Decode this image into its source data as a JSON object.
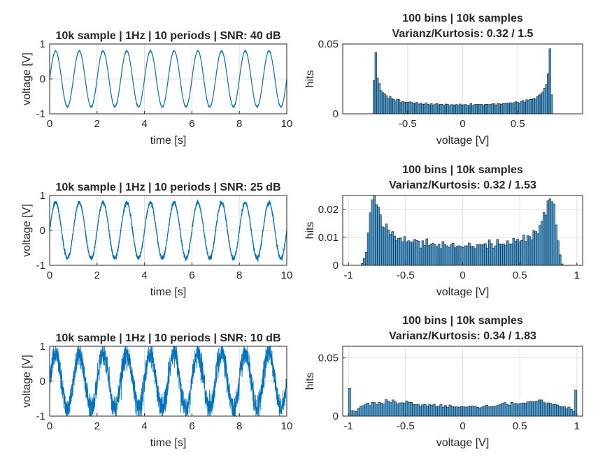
{
  "colors": {
    "line": "#0072BD",
    "bar_fill": "#4D9ED3",
    "bar_edge": "#1A1A1A",
    "axis": "#262626",
    "grid": "#DFDFDF"
  },
  "chart_data": [
    {
      "type": "line",
      "title": "10k sample | 1Hz | 10 periods | SNR: 40 dB",
      "xlabel": "time [s]",
      "ylabel": "voltage [V]",
      "xlim": [
        0,
        10
      ],
      "ylim": [
        -1,
        1
      ],
      "xticks": [
        0,
        2,
        4,
        6,
        8,
        10
      ],
      "yticks": [
        -1,
        0,
        1
      ],
      "grid": true,
      "samples": 10000,
      "frequency_hz": 1,
      "amplitude": 0.8,
      "snr_db": 40
    },
    {
      "type": "bar",
      "title": [
        "100 bins | 10k samples",
        "Varianz/Kurtosis: 0.32 / 1.5"
      ],
      "xlabel": "voltage [V]",
      "ylabel": "hits",
      "xlim": [
        -1.09,
        1.09
      ],
      "ylim": [
        0,
        0.05
      ],
      "xticks": [
        -0.5,
        0,
        0.5
      ],
      "yticks": [
        0,
        0.05
      ],
      "grid": true,
      "bins": 100,
      "samples": 10000,
      "variance": 0.32,
      "kurtosis": 1.5
    },
    {
      "type": "line",
      "title": "10k sample | 1Hz | 10 periods | SNR: 25 dB",
      "xlabel": "time [s]",
      "ylabel": "voltage [V]",
      "xlim": [
        0,
        10
      ],
      "ylim": [
        -1,
        1
      ],
      "xticks": [
        0,
        2,
        4,
        6,
        8,
        10
      ],
      "yticks": [
        -1,
        0,
        1
      ],
      "grid": true,
      "samples": 10000,
      "frequency_hz": 1,
      "amplitude": 0.8,
      "snr_db": 25
    },
    {
      "type": "bar",
      "title": [
        "100 bins | 10k samples",
        "Varianz/Kurtosis: 0.32 / 1.53"
      ],
      "xlabel": "voltage [V]",
      "ylabel": "hits",
      "xlim": [
        -1.05,
        1.05
      ],
      "ylim": [
        0,
        0.025
      ],
      "xticks": [
        -1,
        -0.5,
        0,
        0.5,
        1
      ],
      "yticks": [
        0,
        0.01,
        0.02
      ],
      "grid": true,
      "bins": 100,
      "samples": 10000,
      "variance": 0.32,
      "kurtosis": 1.53
    },
    {
      "type": "line",
      "title": "10k sample | 1Hz | 10 periods | SNR: 10 dB",
      "xlabel": "time [s]",
      "ylabel": "voltage [V]",
      "xlim": [
        0,
        10
      ],
      "ylim": [
        -1,
        1
      ],
      "xticks": [
        0,
        2,
        4,
        6,
        8,
        10
      ],
      "yticks": [
        -1,
        0,
        1
      ],
      "grid": true,
      "samples": 10000,
      "frequency_hz": 1,
      "amplitude": 0.8,
      "snr_db": 10
    },
    {
      "type": "bar",
      "title": [
        "100 bins | 10k samples",
        "Varianz/Kurtosis: 0.34 / 1.83"
      ],
      "xlabel": "voltage [V]",
      "ylabel": "hits",
      "xlim": [
        -1.05,
        1.05
      ],
      "ylim": [
        0,
        0.06
      ],
      "xticks": [
        -1,
        -0.5,
        0,
        0.5,
        1
      ],
      "yticks": [
        0,
        0.05
      ],
      "grid": true,
      "bins": 100,
      "samples": 10000,
      "variance": 0.34,
      "kurtosis": 1.83
    }
  ]
}
